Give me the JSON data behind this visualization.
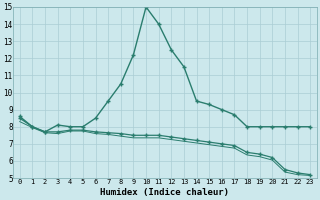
{
  "xlabel": "Humidex (Indice chaleur)",
  "bg_color": "#cce8ec",
  "grid_color": "#aacdd4",
  "line_color": "#2a7d6e",
  "xlim": [
    -0.5,
    23.5
  ],
  "ylim": [
    5,
    15
  ],
  "xticks": [
    0,
    1,
    2,
    3,
    4,
    5,
    6,
    7,
    8,
    9,
    10,
    11,
    12,
    13,
    14,
    15,
    16,
    17,
    18,
    19,
    20,
    21,
    22,
    23
  ],
  "yticks": [
    5,
    6,
    7,
    8,
    9,
    10,
    11,
    12,
    13,
    14,
    15
  ],
  "curve1_x": [
    0,
    1,
    2,
    3,
    4,
    5,
    6,
    7,
    8,
    9,
    10,
    11,
    12,
    13,
    14,
    15,
    16,
    17,
    18,
    19,
    20,
    21,
    22,
    23
  ],
  "curve1_y": [
    8.6,
    8.0,
    7.7,
    8.1,
    8.0,
    8.0,
    8.5,
    9.5,
    10.5,
    12.2,
    15.0,
    14.0,
    12.5,
    11.5,
    9.5,
    9.3,
    9.0,
    8.7,
    8.0,
    8.0,
    8.0,
    8.0,
    8.0,
    8.0
  ],
  "curve2_x": [
    0,
    1,
    2,
    3,
    4,
    5,
    6,
    7,
    8,
    9,
    10,
    11,
    12,
    13,
    14,
    15,
    16,
    17,
    18,
    19,
    20,
    21,
    22,
    23
  ],
  "curve2_y": [
    8.5,
    8.0,
    7.7,
    7.7,
    7.8,
    7.8,
    7.7,
    7.65,
    7.6,
    7.5,
    7.5,
    7.5,
    7.4,
    7.3,
    7.2,
    7.1,
    7.0,
    6.9,
    6.5,
    6.4,
    6.2,
    5.5,
    5.3,
    5.2
  ],
  "curve3_x": [
    0,
    1,
    2,
    3,
    4,
    5,
    6,
    7,
    8,
    9,
    10,
    11,
    12,
    13,
    14,
    15,
    16,
    17,
    18,
    19,
    20,
    21,
    22,
    23
  ],
  "curve3_y": [
    8.3,
    7.95,
    7.65,
    7.6,
    7.75,
    7.75,
    7.6,
    7.55,
    7.45,
    7.35,
    7.35,
    7.35,
    7.25,
    7.15,
    7.05,
    6.95,
    6.85,
    6.75,
    6.35,
    6.25,
    6.05,
    5.35,
    5.2,
    5.15
  ]
}
